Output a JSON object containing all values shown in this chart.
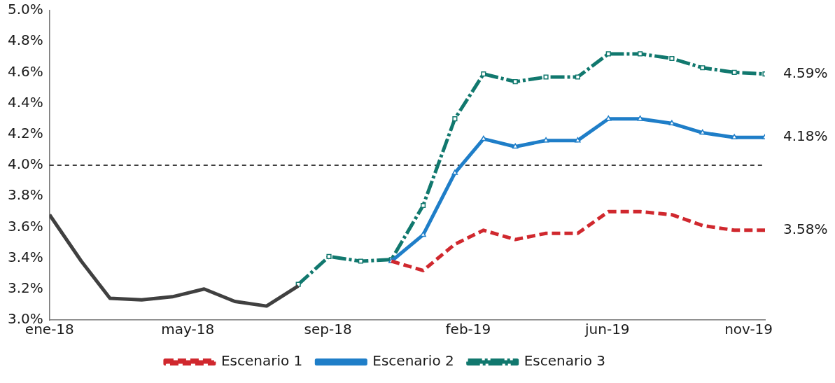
{
  "chart_data": {
    "type": "line",
    "x": [
      "2018-01",
      "2018-02",
      "2018-03",
      "2018-04",
      "2018-05",
      "2018-06",
      "2018-07",
      "2018-08",
      "2018-09",
      "2018-10",
      "2018-11",
      "2018-12",
      "2019-01",
      "2019-02",
      "2019-03",
      "2019-04",
      "2019-05",
      "2019-06",
      "2019-07",
      "2019-08",
      "2019-09",
      "2019-10",
      "2019-11",
      "2019-12"
    ],
    "series": [
      {
        "color": "#404040",
        "line_style": "solid",
        "marker": "none",
        "values": [
          3.68,
          3.38,
          3.14,
          3.13,
          3.15,
          3.2,
          3.12,
          3.09,
          3.22,
          null,
          null,
          null,
          null,
          null,
          null,
          null,
          null,
          null,
          null,
          null,
          null,
          null,
          null,
          null
        ]
      },
      {
        "name": "Escenario 1",
        "color": "#d0282e",
        "line_style": "dashed",
        "marker": "none",
        "values": [
          null,
          null,
          null,
          null,
          null,
          null,
          null,
          null,
          null,
          null,
          null,
          3.38,
          3.32,
          3.49,
          3.58,
          3.52,
          3.56,
          3.56,
          3.7,
          3.7,
          3.68,
          3.61,
          3.58,
          3.58
        ]
      },
      {
        "name": "Escenario 2",
        "color": "#1f7ec8",
        "line_style": "solid",
        "marker": "triangle",
        "values": [
          null,
          null,
          null,
          null,
          null,
          null,
          null,
          null,
          null,
          null,
          null,
          3.38,
          3.55,
          3.95,
          4.17,
          4.12,
          4.16,
          4.16,
          4.3,
          4.3,
          4.27,
          4.21,
          4.18,
          4.18
        ]
      },
      {
        "name": "Escenario 3",
        "color": "#11786e",
        "line_style": "dashed",
        "marker": "square",
        "values": [
          null,
          null,
          null,
          null,
          null,
          null,
          null,
          null,
          3.23,
          3.41,
          3.38,
          3.39,
          3.74,
          4.3,
          4.59,
          4.54,
          4.57,
          4.57,
          4.72,
          4.72,
          4.69,
          4.63,
          4.6,
          4.59
        ]
      }
    ],
    "xlim": [
      "2018-01",
      "2019-12"
    ],
    "xticks": [
      {
        "value": "2018-01-01",
        "label": "ene-18"
      },
      {
        "value": "2018-05-16",
        "label": "may-18"
      },
      {
        "value": "2018-09-30",
        "label": "sep-18"
      },
      {
        "value": "2019-02-14",
        "label": "feb-19"
      },
      {
        "value": "2019-06-30",
        "label": "jun-19"
      },
      {
        "value": "2019-11-15",
        "label": "nov-19"
      }
    ],
    "ylim": [
      3.0,
      5.0
    ],
    "yticks": [
      {
        "value": 3.0,
        "label": "3.0%"
      },
      {
        "value": 3.2,
        "label": "3.2%"
      },
      {
        "value": 3.4,
        "label": "3.4%"
      },
      {
        "value": 3.6,
        "label": "3.6%"
      },
      {
        "value": 3.8,
        "label": "3.8%"
      },
      {
        "value": 4.0,
        "label": "4.0%"
      },
      {
        "value": 4.2,
        "label": "4.2%"
      },
      {
        "value": 4.4,
        "label": "4.4%"
      },
      {
        "value": 4.6,
        "label": "4.6%"
      },
      {
        "value": 4.8,
        "label": "4.8%"
      },
      {
        "value": 5.0,
        "label": "5.0%"
      }
    ],
    "ref_lines": [
      {
        "axis": "y",
        "value": 4.0,
        "color": "#000000",
        "line_style": "dashed"
      }
    ],
    "annotations": [
      {
        "text": "4.59%",
        "x": "2019-12",
        "y": 4.59
      },
      {
        "text": "4.18%",
        "x": "2019-12",
        "y": 4.18
      },
      {
        "text": "3.58%",
        "x": "2019-12",
        "y": 3.58
      }
    ],
    "grid": false,
    "legend": "bottom"
  }
}
